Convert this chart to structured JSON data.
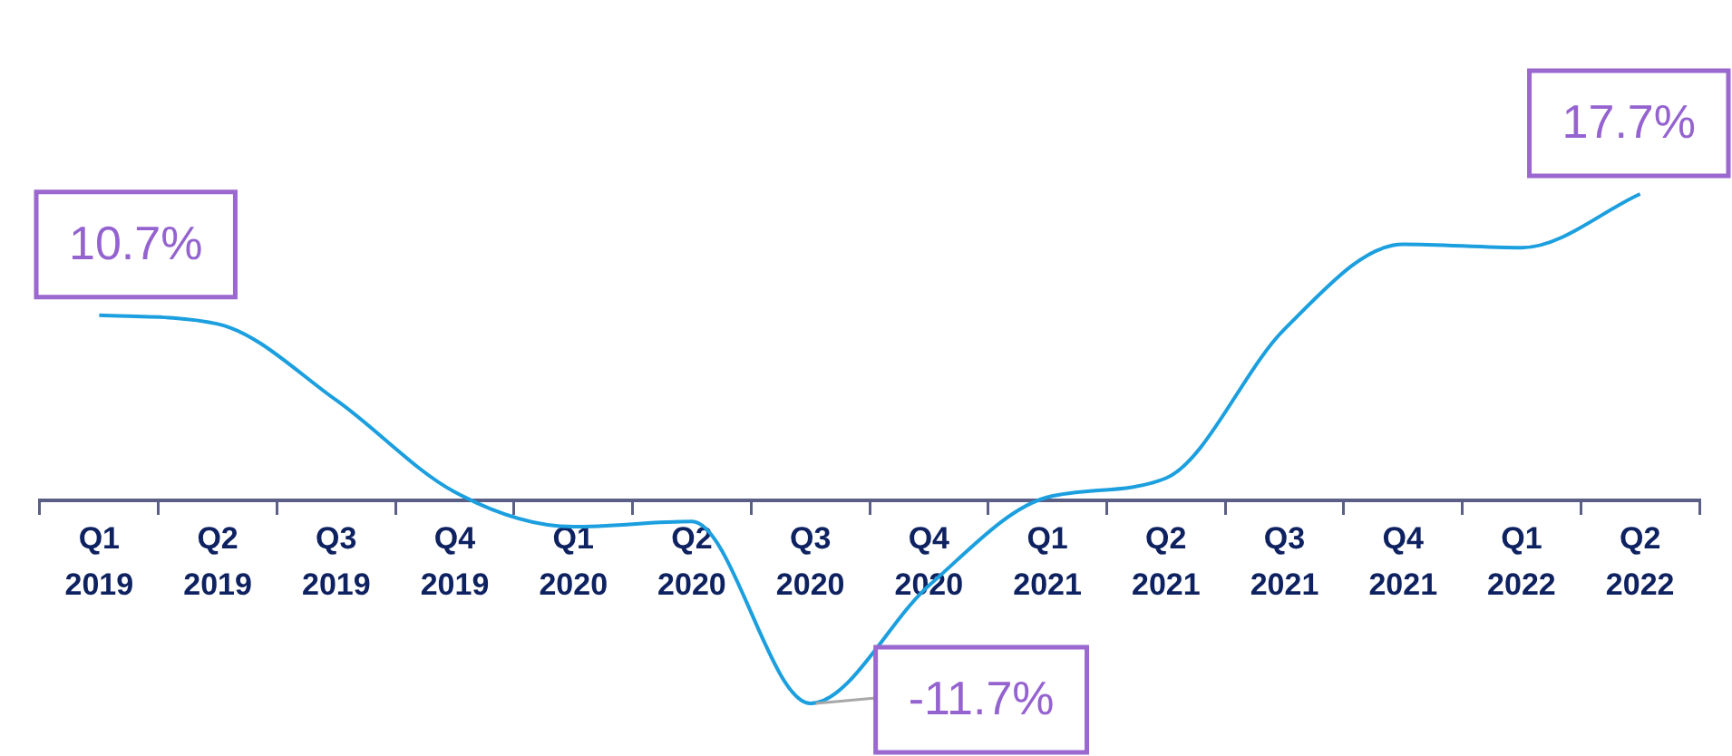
{
  "chart_data": {
    "type": "line",
    "categories": [
      "Q1 2019",
      "Q2 2019",
      "Q3 2019",
      "Q4 2019",
      "Q1 2020",
      "Q2 2020",
      "Q3 2020",
      "Q4 2020",
      "Q1 2021",
      "Q2 2021",
      "Q3 2021",
      "Q4 2021",
      "Q1 2022",
      "Q2 2022"
    ],
    "series": [
      {
        "color": "#1b9fdf",
        "values": [
          10.7,
          10.2,
          5.8,
          0.5,
          -1.5,
          -1.2,
          -11.7,
          -4.9,
          0.2,
          1.3,
          9.9,
          14.8,
          14.6,
          17.7
        ],
        "value_labels": [
          "10.7%",
          null,
          null,
          null,
          null,
          null,
          "-11.7%",
          null,
          null,
          null,
          null,
          null,
          null,
          "17.7%"
        ]
      }
    ],
    "tick_labels": "x",
    "marker": "none"
  }
}
